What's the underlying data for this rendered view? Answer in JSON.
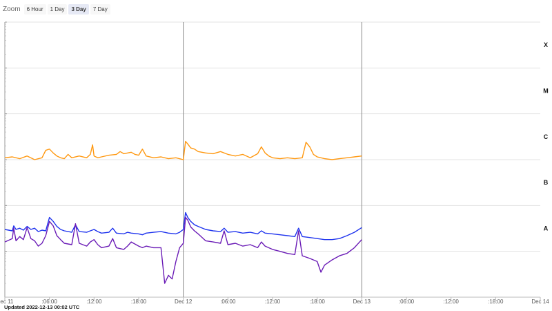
{
  "zoom": {
    "label": "Zoom",
    "buttons": [
      "6 Hour",
      "1 Day",
      "3 Day",
      "7 Day"
    ],
    "active": "3 Day"
  },
  "updated": "Updated 2022-12-13 00:02 UTC",
  "colors": {
    "long": "#ff9810",
    "short": "#1f34ee",
    "combo": "#6a1bb6"
  },
  "chart_data": {
    "type": "line",
    "title": "",
    "xlabel": "",
    "ylabel": "",
    "yscale": "log",
    "ylim": [
      1e-09,
      0.001
    ],
    "grid": true,
    "x_range_hours": [
      0,
      72
    ],
    "x_ticks": [
      {
        "h": 0,
        "label": "Dec 11"
      },
      {
        "h": 6,
        "label": ":06:00"
      },
      {
        "h": 12,
        "label": ":12:00"
      },
      {
        "h": 18,
        "label": ":18:00"
      },
      {
        "h": 24,
        "label": "Dec 12"
      },
      {
        "h": 30,
        "label": ":06:00"
      },
      {
        "h": 36,
        "label": ":12:00"
      },
      {
        "h": 42,
        "label": ":18:00"
      },
      {
        "h": 48,
        "label": "Dec 13"
      },
      {
        "h": 54,
        "label": ":06:00"
      },
      {
        "h": 60,
        "label": ":12:00"
      },
      {
        "h": 66,
        "label": ":18:00"
      },
      {
        "h": 72,
        "label": "Dec 14"
      }
    ],
    "day_markers_hours": [
      24,
      48
    ],
    "flare_classes": [
      {
        "label": "X",
        "flux": 0.0001
      },
      {
        "label": "M",
        "flux": 1e-05
      },
      {
        "label": "C",
        "flux": 1e-06
      },
      {
        "label": "B",
        "flux": 1e-07
      },
      {
        "label": "A",
        "flux": 1e-08
      }
    ],
    "series": [
      {
        "color": "#ff9810",
        "x_hours": [
          0,
          1,
          2,
          3,
          4,
          5,
          5.5,
          6,
          6.5,
          7,
          7.5,
          8,
          8.5,
          9,
          10,
          11,
          11.5,
          11.8,
          12,
          12.5,
          13,
          14,
          15,
          15.5,
          16,
          17,
          17.5,
          18,
          18.5,
          19,
          20,
          21,
          22,
          23,
          24,
          24.3,
          24.6,
          25,
          25.5,
          26,
          27,
          28,
          29,
          30,
          31,
          32,
          33,
          34,
          34.5,
          35,
          35.5,
          36,
          37,
          38,
          39,
          40,
          40.5,
          41,
          41.5,
          42,
          43,
          44,
          45,
          46,
          47,
          48
        ],
        "values": [
          1.1e-06,
          1.15e-06,
          1.05e-06,
          1.2e-06,
          1e-06,
          1.1e-06,
          1.6e-06,
          1.7e-06,
          1.4e-06,
          1.2e-06,
          1.1e-06,
          1.05e-06,
          1.3e-06,
          1.1e-06,
          1.2e-06,
          1.1e-06,
          1.3e-06,
          2.1e-06,
          1.2e-06,
          1.1e-06,
          1.15e-06,
          1.25e-06,
          1.3e-06,
          1.5e-06,
          1.35e-06,
          1.45e-06,
          1.3e-06,
          1.25e-06,
          1.7e-06,
          1.2e-06,
          1.1e-06,
          1.15e-06,
          1.05e-06,
          1.1e-06,
          1e-06,
          2.5e-06,
          2.2e-06,
          1.8e-06,
          1.7e-06,
          1.5e-06,
          1.4e-06,
          1.35e-06,
          1.5e-06,
          1.3e-06,
          1.2e-06,
          1.3e-06,
          1.1e-06,
          1.35e-06,
          1.9e-06,
          1.4e-06,
          1.2e-06,
          1.1e-06,
          1.05e-06,
          1.1e-06,
          1.05e-06,
          1.1e-06,
          2.4e-06,
          1.9e-06,
          1.3e-06,
          1.15e-06,
          1.05e-06,
          1e-06,
          1.05e-06,
          1.1e-06,
          1.15e-06,
          1.2e-06
        ]
      },
      {
        "color": "#1f34ee",
        "x_hours": [
          0,
          1,
          1.2,
          1.5,
          2,
          2.5,
          3,
          3.5,
          4,
          4.5,
          5,
          5.5,
          6,
          6.5,
          7,
          7.5,
          8,
          9,
          9.5,
          10,
          11,
          11.5,
          12,
          12.5,
          13,
          14,
          14.5,
          15,
          16,
          16.5,
          17,
          18,
          18.5,
          19,
          20,
          21,
          22,
          23,
          23.5,
          24,
          24.3,
          24.6,
          25,
          25.5,
          26,
          27,
          28,
          29,
          29.5,
          30,
          31,
          32,
          33,
          34,
          34.5,
          35,
          36,
          37,
          38,
          39,
          39.5,
          40,
          41,
          42,
          43,
          44,
          45,
          46,
          47,
          48
        ],
        "values": [
          3e-08,
          2.8e-08,
          3.6e-08,
          3e-08,
          3.2e-08,
          2.9e-08,
          3.5e-08,
          3e-08,
          3.2e-08,
          2.7e-08,
          2.9e-08,
          2.8e-08,
          5.5e-08,
          4.5e-08,
          3.5e-08,
          3e-08,
          2.8e-08,
          2.6e-08,
          3.8e-08,
          2.7e-08,
          2.6e-08,
          2.8e-08,
          3e-08,
          2.7e-08,
          2.5e-08,
          2.6e-08,
          3.2e-08,
          2.5e-08,
          2.4e-08,
          2.6e-08,
          2.5e-08,
          2.4e-08,
          2.3e-08,
          2.5e-08,
          2.6e-08,
          2.7e-08,
          2.5e-08,
          2.4e-08,
          2.6e-08,
          3e-08,
          7e-08,
          5.5e-08,
          4.5e-08,
          3.8e-08,
          3.5e-08,
          3e-08,
          2.8e-08,
          2.7e-08,
          3.2e-08,
          2.6e-08,
          2.7e-08,
          2.5e-08,
          2.6e-08,
          2.4e-08,
          2.8e-08,
          2.5e-08,
          2.4e-08,
          2.3e-08,
          2.2e-08,
          2.1e-08,
          3.2e-08,
          2.1e-08,
          2e-08,
          1.9e-08,
          1.8e-08,
          1.8e-08,
          1.9e-08,
          2.2e-08,
          2.6e-08,
          3.3e-08
        ]
      },
      {
        "color": "#6a1bb6",
        "x_hours": [
          0,
          1,
          1.2,
          1.5,
          2,
          2.5,
          3,
          3.5,
          4,
          4.5,
          5,
          5.5,
          6,
          6.5,
          7,
          7.5,
          8,
          9,
          9.5,
          10,
          11,
          11.5,
          12,
          12.5,
          13,
          14,
          14.5,
          15,
          16,
          16.5,
          17,
          18,
          18.5,
          19,
          20,
          21,
          21.5,
          22,
          22.5,
          23,
          23.5,
          24,
          24.3,
          24.6,
          25,
          25.5,
          26,
          27,
          28,
          29,
          29.5,
          30,
          31,
          32,
          33,
          34,
          34.5,
          35,
          36,
          37,
          38,
          39,
          39.5,
          40,
          41,
          42,
          42.5,
          43,
          44,
          45,
          46,
          47,
          48
        ],
        "values": [
          1.6e-08,
          1.9e-08,
          3.2e-08,
          1.7e-08,
          2.1e-08,
          1.8e-08,
          3.3e-08,
          1.9e-08,
          1.7e-08,
          1.3e-08,
          1.5e-08,
          2.2e-08,
          4.5e-08,
          3.6e-08,
          2.2e-08,
          1.8e-08,
          1.5e-08,
          1.4e-08,
          4e-08,
          1.5e-08,
          1.3e-08,
          1.6e-08,
          1.8e-08,
          1.4e-08,
          1.2e-08,
          1.3e-08,
          1.9e-08,
          1.2e-08,
          1.1e-08,
          1.3e-08,
          1.6e-08,
          1.3e-08,
          1.2e-08,
          1.3e-08,
          1.2e-08,
          1.2e-08,
          2e-09,
          3e-09,
          2.5e-09,
          6e-09,
          1.2e-08,
          1.5e-08,
          5.5e-08,
          4.8e-08,
          3.4e-08,
          2.8e-08,
          2.4e-08,
          1.7e-08,
          1.6e-08,
          1.5e-08,
          2.8e-08,
          1.4e-08,
          1.5e-08,
          1.3e-08,
          1.4e-08,
          1.2e-08,
          1.6e-08,
          1.3e-08,
          1.1e-08,
          1e-08,
          9e-09,
          8.5e-09,
          2.8e-08,
          8e-09,
          7e-09,
          6e-09,
          3.5e-09,
          5e-09,
          6.5e-09,
          8e-09,
          9e-09,
          1.2e-08,
          1.8e-08
        ]
      }
    ]
  }
}
